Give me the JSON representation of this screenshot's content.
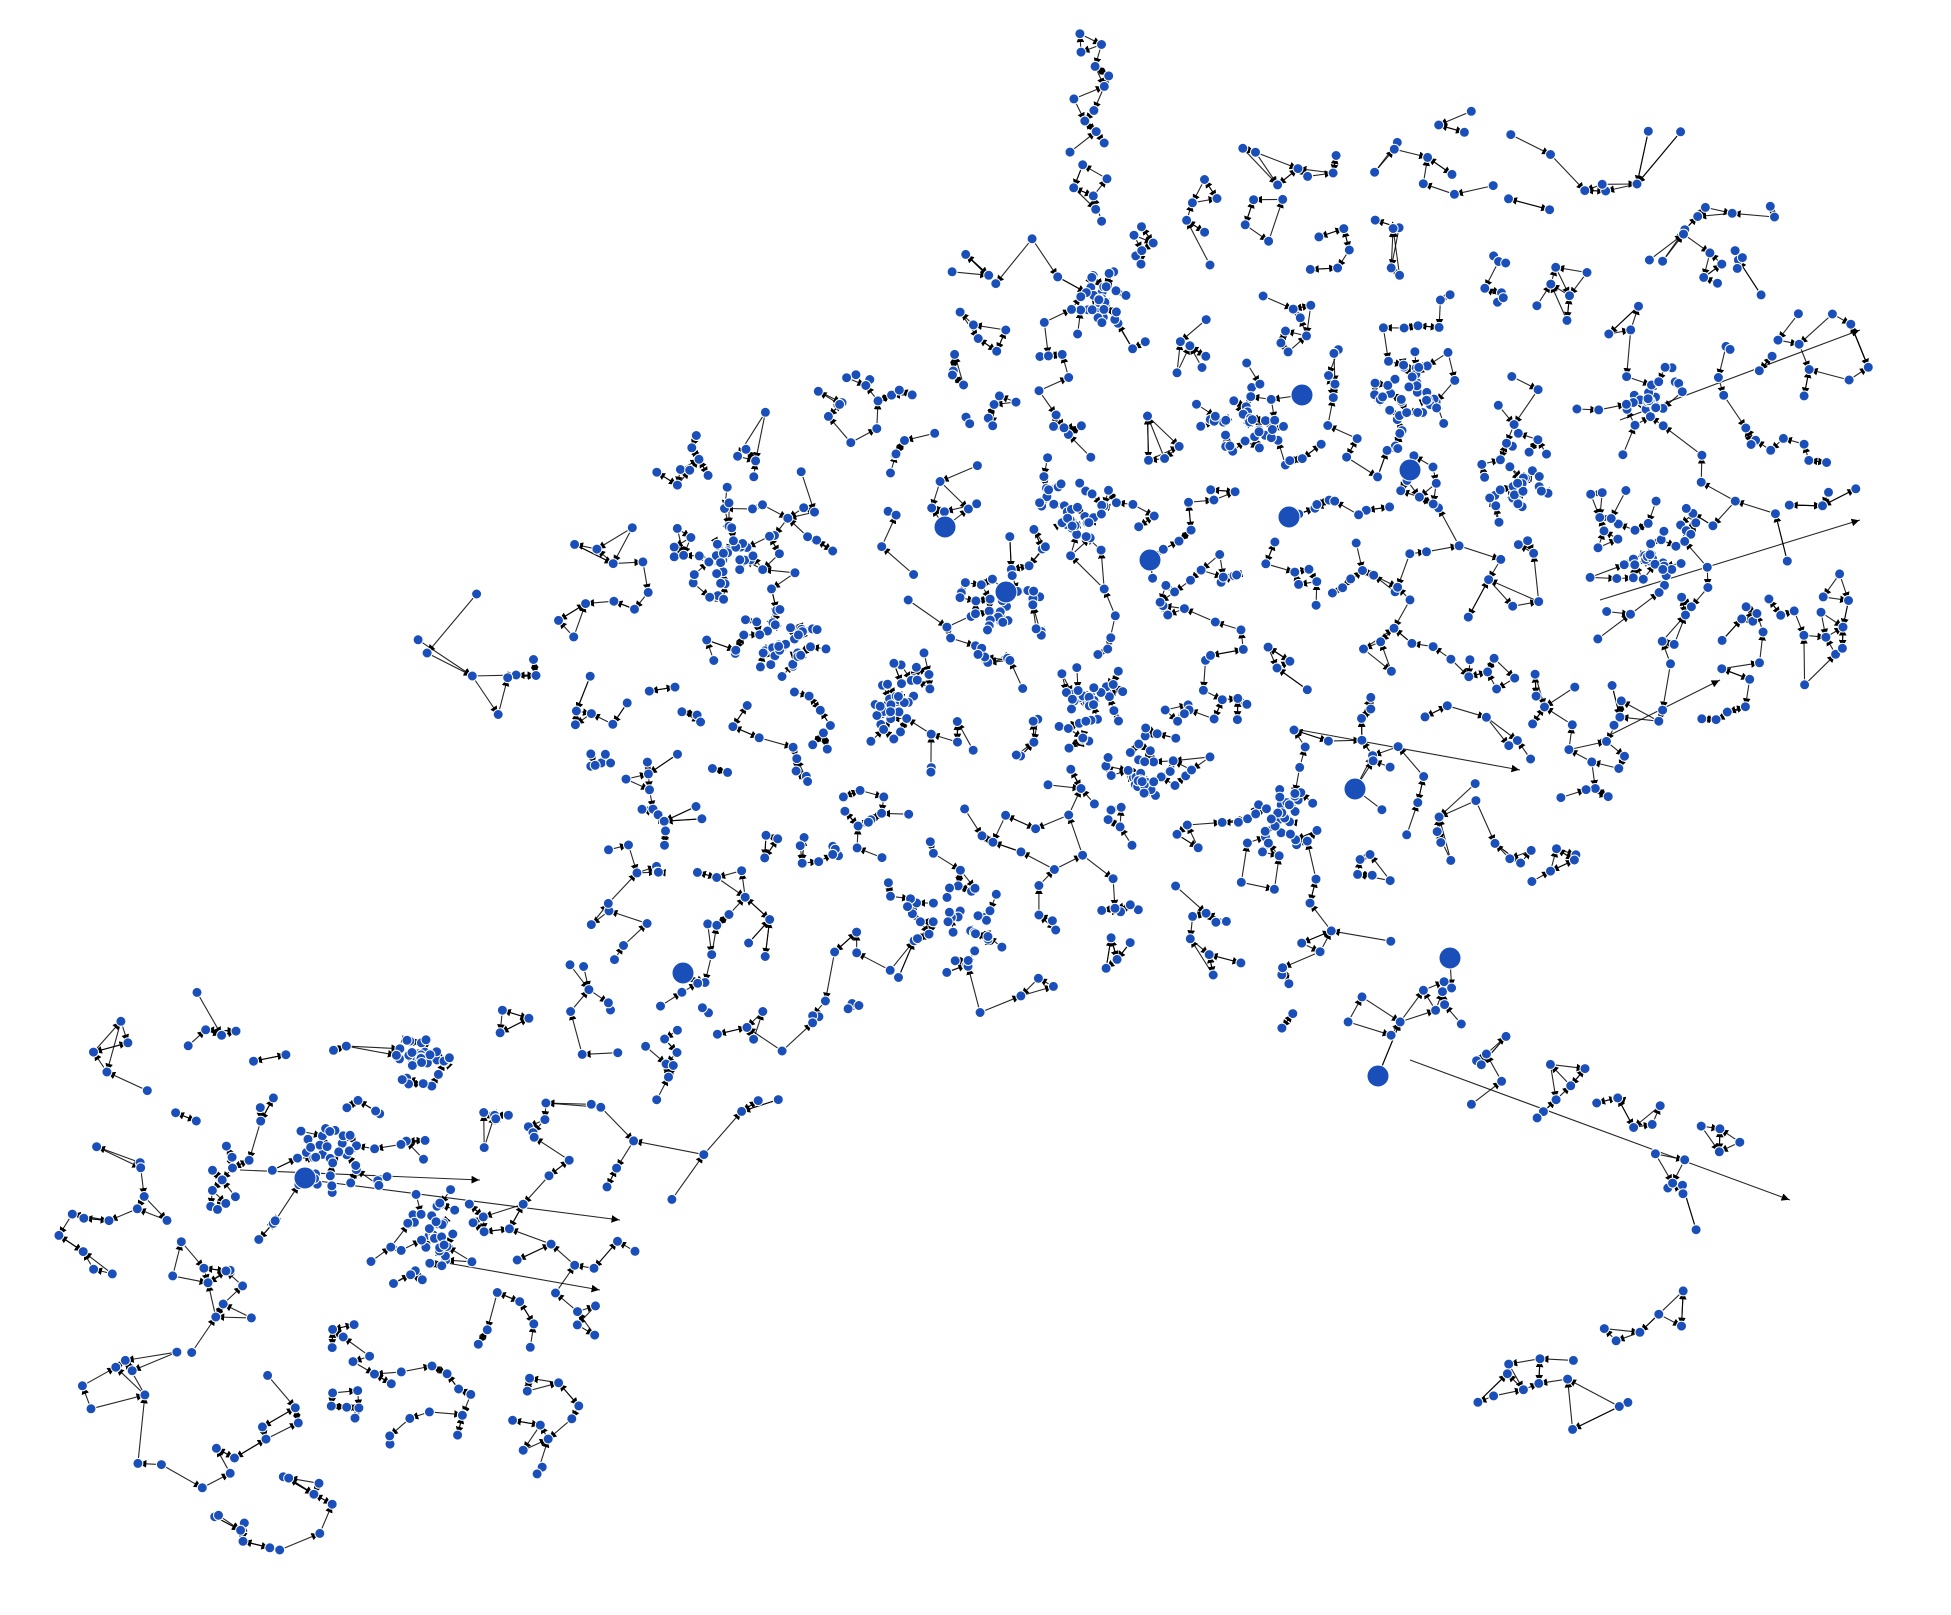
{
  "diagram": {
    "kind": "directed network graph",
    "node_color": "#1a4fba",
    "edge_color": "#000000",
    "background": "#ffffff",
    "edge_style": "thin line with arrowhead at target",
    "node_sizes": [
      "small",
      "large (hub)"
    ],
    "hub_count": 11,
    "text_labels": []
  }
}
